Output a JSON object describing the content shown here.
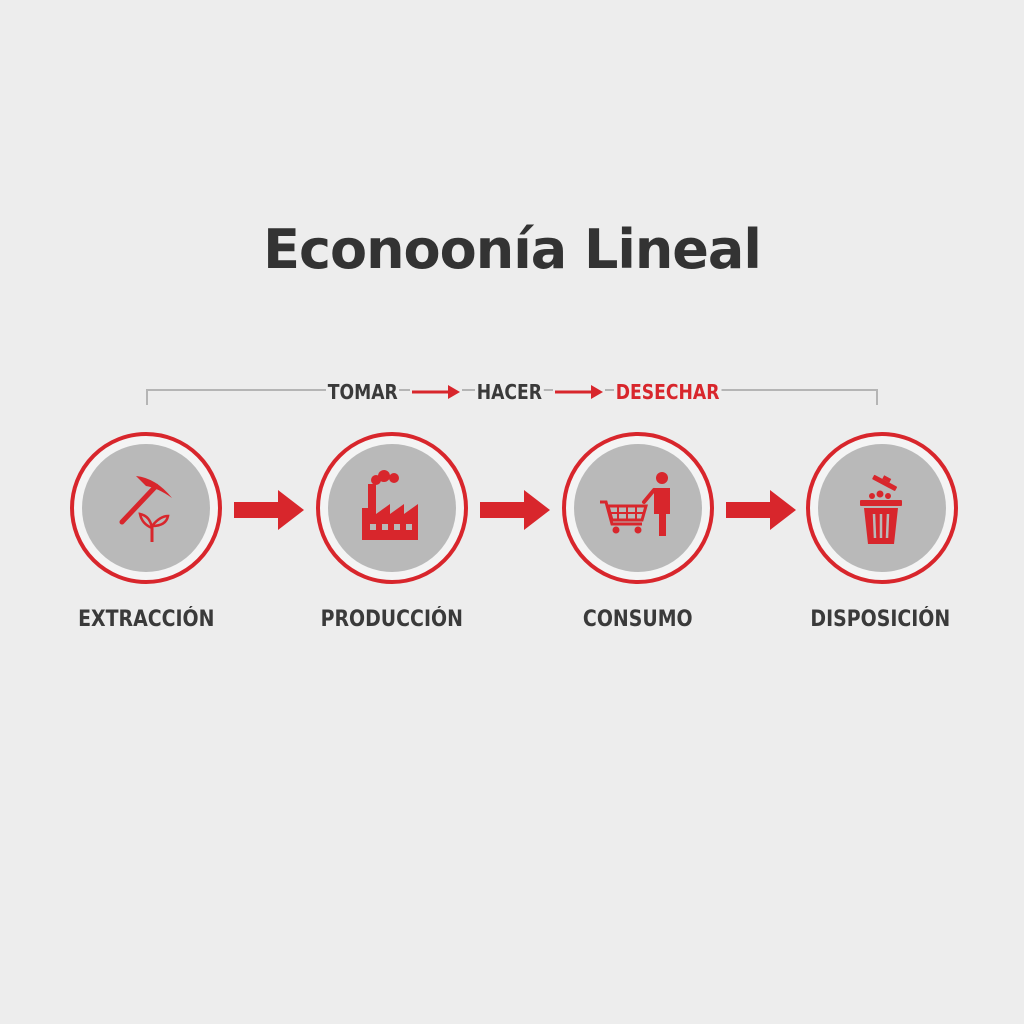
{
  "title": "Econoonía Lineal",
  "phases": {
    "take": "TOMAR",
    "make": "HACER",
    "dispose": "DESECHAR"
  },
  "stages": [
    {
      "label": "EXTRACCIÓN",
      "icon": "pickaxe-plant-icon"
    },
    {
      "label": "PRODUCCIÓN",
      "icon": "factory-icon"
    },
    {
      "label": "CONSUMO",
      "icon": "shopping-cart-person-icon"
    },
    {
      "label": "DISPOSICIÓN",
      "icon": "trash-bin-icon"
    }
  ],
  "colors": {
    "accent": "#d8262c",
    "background": "#ededed",
    "disc": "#b9b9b9",
    "text": "#3a3a3a"
  }
}
